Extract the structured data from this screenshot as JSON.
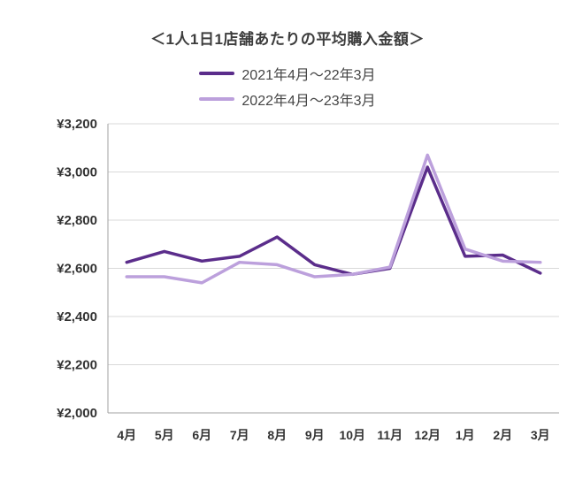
{
  "chart_data": {
    "type": "line",
    "title": "＜1人1日1店舗あたりの平均購入金額＞",
    "categories": [
      "4月",
      "5月",
      "6月",
      "7月",
      "8月",
      "9月",
      "10月",
      "11月",
      "12月",
      "1月",
      "2月",
      "3月"
    ],
    "series": [
      {
        "name": "2021年4月〜22年3月",
        "color": "#5B2D8B",
        "values": [
          2625,
          2670,
          2630,
          2650,
          2730,
          2615,
          2575,
          2600,
          3020,
          2650,
          2655,
          2580
        ]
      },
      {
        "name": "2022年4月〜23年3月",
        "color": "#BCA0DC",
        "values": [
          2565,
          2565,
          2540,
          2625,
          2615,
          2565,
          2575,
          2605,
          3070,
          2680,
          2630,
          2625
        ]
      }
    ],
    "ylim": [
      2000,
      3200
    ],
    "y_ticks": [
      2000,
      2200,
      2400,
      2600,
      2800,
      3000,
      3200
    ],
    "y_tick_labels": [
      "¥2,000",
      "¥2,200",
      "¥2,400",
      "¥2,600",
      "¥2,800",
      "¥3,000",
      "¥3,200"
    ],
    "xlabel": "",
    "ylabel": "",
    "grid": true,
    "legend_position": "top",
    "colors": {
      "grid_line": "#d9d9d9",
      "axis_line": "#a0a0a0",
      "title_text": "#3d3d3d",
      "tick_text": "#333333"
    }
  }
}
